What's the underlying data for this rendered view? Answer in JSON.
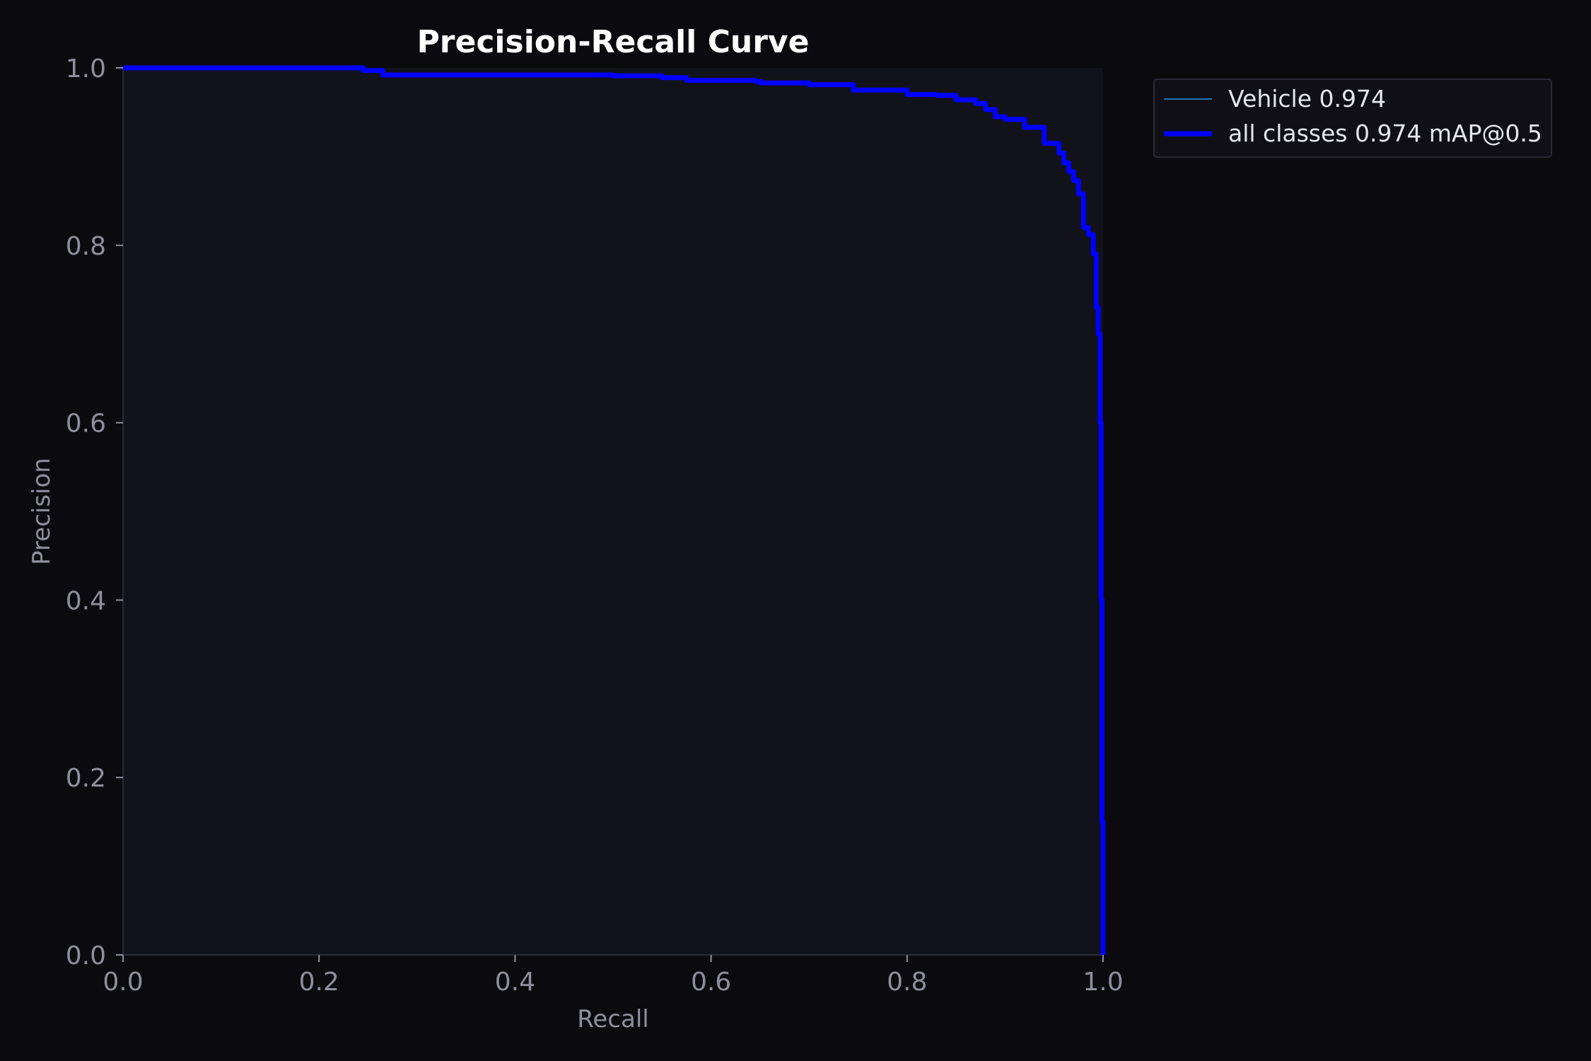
{
  "chart_data": {
    "type": "line",
    "title": "Precision-Recall Curve",
    "xlabel": "Recall",
    "ylabel": "Precision",
    "xlim": [
      0.0,
      1.0
    ],
    "ylim": [
      0.0,
      1.0
    ],
    "x_ticks": [
      "0.0",
      "0.2",
      "0.4",
      "0.6",
      "0.8",
      "1.0"
    ],
    "y_ticks": [
      "0.0",
      "0.2",
      "0.4",
      "0.6",
      "0.8",
      "1.0"
    ],
    "grid": false,
    "legend_position": "outside-top-right",
    "colors": {
      "background": "#0b0b0f",
      "plot_background": "#12121a",
      "axis": "#2a2a35",
      "vehicle_line": "#1f77b4",
      "all_classes_line": "#0000ff"
    },
    "series": [
      {
        "name": "Vehicle 0.974",
        "x": [
          0.0,
          0.2,
          0.245,
          0.265,
          0.3,
          0.4,
          0.5,
          0.55,
          0.575,
          0.6,
          0.645,
          0.65,
          0.7,
          0.745,
          0.8,
          0.83,
          0.85,
          0.87,
          0.88,
          0.89,
          0.9,
          0.92,
          0.94,
          0.955,
          0.96,
          0.965,
          0.97,
          0.975,
          0.98,
          0.985,
          0.99,
          0.993,
          0.995,
          0.997,
          0.998,
          0.999,
          1.0
        ],
        "y": [
          1.0,
          1.0,
          0.997,
          0.992,
          0.992,
          0.992,
          0.991,
          0.989,
          0.986,
          0.986,
          0.985,
          0.983,
          0.981,
          0.975,
          0.97,
          0.969,
          0.964,
          0.96,
          0.953,
          0.945,
          0.942,
          0.933,
          0.915,
          0.904,
          0.893,
          0.883,
          0.873,
          0.858,
          0.82,
          0.812,
          0.79,
          0.73,
          0.7,
          0.6,
          0.4,
          0.15,
          0.0
        ],
        "linewidth": "thin"
      },
      {
        "name": "all classes 0.974 mAP@0.5",
        "x": [
          0.0,
          0.2,
          0.245,
          0.265,
          0.3,
          0.4,
          0.5,
          0.55,
          0.575,
          0.6,
          0.645,
          0.65,
          0.7,
          0.745,
          0.8,
          0.83,
          0.85,
          0.87,
          0.88,
          0.89,
          0.9,
          0.92,
          0.94,
          0.955,
          0.96,
          0.965,
          0.97,
          0.975,
          0.98,
          0.985,
          0.99,
          0.993,
          0.995,
          0.997,
          0.998,
          0.999,
          1.0
        ],
        "y": [
          1.0,
          1.0,
          0.997,
          0.992,
          0.992,
          0.992,
          0.991,
          0.989,
          0.986,
          0.986,
          0.985,
          0.983,
          0.981,
          0.975,
          0.97,
          0.969,
          0.964,
          0.96,
          0.953,
          0.945,
          0.942,
          0.933,
          0.915,
          0.904,
          0.893,
          0.883,
          0.873,
          0.858,
          0.82,
          0.812,
          0.79,
          0.73,
          0.7,
          0.6,
          0.4,
          0.15,
          0.0
        ],
        "linewidth": "thick"
      }
    ]
  }
}
